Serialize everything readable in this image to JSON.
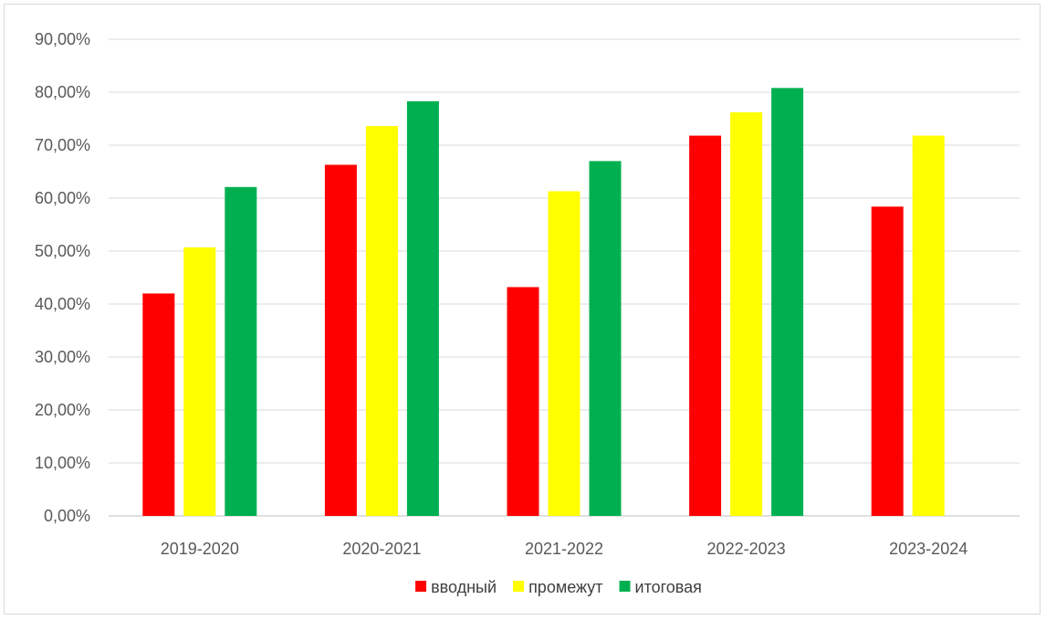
{
  "chart_data": {
    "type": "bar",
    "categories": [
      "2019-2020",
      "2020-2021",
      "2021-2022",
      "2022-2023",
      "2023-2024"
    ],
    "series": [
      {
        "name": "вводный",
        "color": "#ff0000",
        "values": [
          42.0,
          66.3,
          43.2,
          71.8,
          58.4
        ]
      },
      {
        "name": "промежут",
        "color": "#ffff00",
        "values": [
          50.7,
          73.6,
          61.3,
          76.2,
          71.8
        ]
      },
      {
        "name": "итоговая",
        "color": "#00b050",
        "values": [
          62.1,
          78.3,
          67.0,
          80.8,
          null
        ]
      }
    ],
    "yticks": [
      "0,00%",
      "10,00%",
      "20,00%",
      "30,00%",
      "40,00%",
      "50,00%",
      "60,00%",
      "70,00%",
      "80,00%",
      "90,00%"
    ],
    "ylim": [
      0,
      90
    ],
    "grid": true,
    "legend_position": "bottom",
    "title": "",
    "xlabel": "",
    "ylabel": ""
  }
}
